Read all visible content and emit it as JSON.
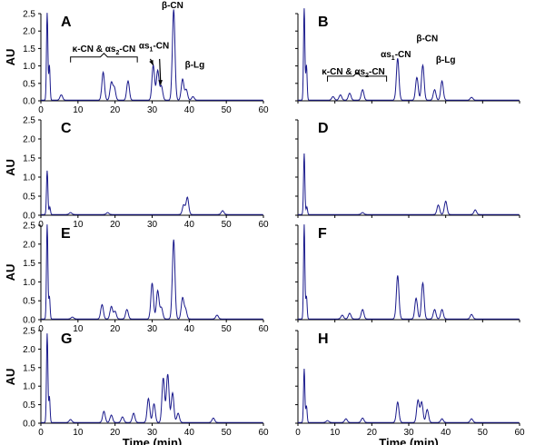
{
  "figure": {
    "trace_color": "#1a1a8c",
    "axis_color": "#000000"
  },
  "chart_data": [
    {
      "type": "line",
      "panel": "A",
      "xlabel": "",
      "ylabel": "AU",
      "xlim": [
        0,
        60
      ],
      "ylim": [
        0,
        2.5
      ],
      "x_ticks": [
        "0",
        "10",
        "20",
        "30",
        "40",
        "50",
        "60"
      ],
      "y_ticks": [
        "0.0",
        "0.5",
        "1.0",
        "1.5",
        "2.0",
        "2.5"
      ],
      "peaks": [
        [
          1.7,
          2.5
        ],
        [
          2.3,
          1.0
        ],
        [
          5.5,
          0.15
        ],
        [
          16.8,
          0.8
        ],
        [
          19,
          0.5
        ],
        [
          19.8,
          0.35
        ],
        [
          23.5,
          0.55
        ],
        [
          30.3,
          1.0
        ],
        [
          31.5,
          0.85
        ],
        [
          32.5,
          0.4
        ],
        [
          35.8,
          2.6
        ],
        [
          38.2,
          0.6
        ],
        [
          39.2,
          0.3
        ],
        [
          41,
          0.1
        ]
      ],
      "annotations": [
        {
          "text": "κ-CN & αs",
          "sub": "2",
          "tail": "-CN",
          "x": 17,
          "y": 1.4,
          "bracket": [
            8,
            26,
            1.1
          ]
        },
        {
          "text": "αs",
          "sub": "1",
          "tail": "-CN",
          "x": 30.5,
          "y": 1.5,
          "arrows": [
            [
              29.5,
              1.2,
              30.3,
              1.02
            ],
            [
              32,
              1.2,
              32.3,
              0.45
            ]
          ]
        },
        {
          "text": "β-CN",
          "x": 35.5,
          "y": 2.65
        },
        {
          "text": "β-Lg",
          "x": 41.5,
          "y": 0.95
        }
      ]
    },
    {
      "type": "line",
      "panel": "B",
      "xlabel": "",
      "ylabel": "",
      "xlim": [
        0,
        60
      ],
      "ylim": [
        0,
        2.5
      ],
      "x_ticks": [],
      "y_ticks": [],
      "peaks": [
        [
          1.7,
          2.7
        ],
        [
          2.3,
          1.0
        ],
        [
          9.5,
          0.1
        ],
        [
          11.5,
          0.15
        ],
        [
          14,
          0.2
        ],
        [
          17.5,
          0.3
        ],
        [
          27,
          1.2
        ],
        [
          32.2,
          0.65
        ],
        [
          33.8,
          1.0
        ],
        [
          37,
          0.3
        ],
        [
          39,
          0.55
        ],
        [
          47,
          0.08
        ]
      ],
      "annotations": [
        {
          "text": "κ-CN & αs",
          "sub": "2",
          "tail": "-CN",
          "x": 15,
          "y": 0.75,
          "bracket": [
            8,
            24,
            0.55
          ]
        },
        {
          "text": "αs",
          "sub": "1",
          "tail": "-CN",
          "x": 26.5,
          "y": 1.25
        },
        {
          "text": "β-CN",
          "x": 35,
          "y": 1.7
        },
        {
          "text": "β-Lg",
          "x": 40,
          "y": 1.1
        }
      ]
    },
    {
      "type": "line",
      "panel": "C",
      "xlabel": "",
      "ylabel": "AU",
      "xlim": [
        0,
        60
      ],
      "ylim": [
        0,
        2.5
      ],
      "x_ticks": [
        "0",
        "10",
        "20",
        "30",
        "40",
        "50",
        "60"
      ],
      "y_ticks": [
        "0.0",
        "0.5",
        "1.0",
        "1.5",
        "2.0",
        "2.5"
      ],
      "peaks": [
        [
          1.7,
          1.15
        ],
        [
          2.4,
          0.2
        ],
        [
          8,
          0.05
        ],
        [
          18,
          0.05
        ],
        [
          38.5,
          0.25
        ],
        [
          39.5,
          0.45
        ],
        [
          49,
          0.1
        ]
      ],
      "annotations": []
    },
    {
      "type": "line",
      "panel": "D",
      "xlabel": "",
      "ylabel": "",
      "xlim": [
        0,
        60
      ],
      "ylim": [
        0,
        2.5
      ],
      "x_ticks": [],
      "y_ticks": [],
      "peaks": [
        [
          1.7,
          1.6
        ],
        [
          2.4,
          0.2
        ],
        [
          17.5,
          0.05
        ],
        [
          38,
          0.25
        ],
        [
          40,
          0.35
        ],
        [
          48,
          0.12
        ]
      ],
      "annotations": []
    },
    {
      "type": "line",
      "panel": "E",
      "xlabel": "",
      "ylabel": "AU",
      "xlim": [
        0,
        60
      ],
      "ylim": [
        0,
        2.5
      ],
      "x_ticks": [
        "0",
        "10",
        "20",
        "30",
        "40",
        "50",
        "60"
      ],
      "y_ticks": [
        "0.0",
        "0.5",
        "1.0",
        "1.5",
        "2.0",
        "2.5"
      ],
      "peaks": [
        [
          1.7,
          2.5
        ],
        [
          2.3,
          0.6
        ],
        [
          8.5,
          0.05
        ],
        [
          16.5,
          0.38
        ],
        [
          19,
          0.33
        ],
        [
          20,
          0.2
        ],
        [
          23.2,
          0.25
        ],
        [
          30,
          0.95
        ],
        [
          31.5,
          0.75
        ],
        [
          32.5,
          0.3
        ],
        [
          35.8,
          2.1
        ],
        [
          38.2,
          0.55
        ],
        [
          39,
          0.25
        ],
        [
          47.5,
          0.1
        ]
      ],
      "annotations": []
    },
    {
      "type": "line",
      "panel": "F",
      "xlabel": "",
      "ylabel": "",
      "xlim": [
        0,
        60
      ],
      "ylim": [
        0,
        2.5
      ],
      "x_ticks": [],
      "y_ticks": [],
      "peaks": [
        [
          1.7,
          2.5
        ],
        [
          2.3,
          0.6
        ],
        [
          12,
          0.1
        ],
        [
          14,
          0.15
        ],
        [
          17.5,
          0.25
        ],
        [
          27,
          1.15
        ],
        [
          32,
          0.55
        ],
        [
          33.8,
          0.95
        ],
        [
          37,
          0.25
        ],
        [
          39,
          0.25
        ],
        [
          47,
          0.12
        ]
      ],
      "annotations": []
    },
    {
      "type": "line",
      "panel": "G",
      "xlabel": "Time (min)",
      "ylabel": "AU",
      "xlim": [
        0,
        60
      ],
      "ylim": [
        0,
        2.5
      ],
      "x_ticks": [
        "0",
        "10",
        "20",
        "30",
        "40",
        "50",
        "60"
      ],
      "y_ticks": [
        "0.0",
        "0.5",
        "1.0",
        "1.5",
        "2.0",
        "2.5"
      ],
      "peaks": [
        [
          1.7,
          2.4
        ],
        [
          2.3,
          0.7
        ],
        [
          8,
          0.08
        ],
        [
          17,
          0.3
        ],
        [
          19,
          0.2
        ],
        [
          22,
          0.15
        ],
        [
          25,
          0.25
        ],
        [
          29,
          0.65
        ],
        [
          30.5,
          0.5
        ],
        [
          33,
          1.2
        ],
        [
          34.2,
          1.3
        ],
        [
          35.5,
          0.8
        ],
        [
          37,
          0.25
        ],
        [
          46.5,
          0.12
        ]
      ],
      "annotations": []
    },
    {
      "type": "line",
      "panel": "H",
      "xlabel": "Time (min)",
      "ylabel": "",
      "xlim": [
        0,
        60
      ],
      "ylim": [
        0,
        2.5
      ],
      "x_ticks": [
        "0",
        "10",
        "20",
        "30",
        "40",
        "50",
        "60"
      ],
      "y_ticks": [],
      "peaks": [
        [
          1.7,
          1.45
        ],
        [
          2.3,
          0.45
        ],
        [
          8,
          0.05
        ],
        [
          13,
          0.1
        ],
        [
          17.5,
          0.12
        ],
        [
          27,
          0.55
        ],
        [
          32.5,
          0.6
        ],
        [
          33.5,
          0.55
        ],
        [
          35,
          0.35
        ],
        [
          39,
          0.1
        ],
        [
          47,
          0.1
        ]
      ],
      "annotations": []
    }
  ]
}
